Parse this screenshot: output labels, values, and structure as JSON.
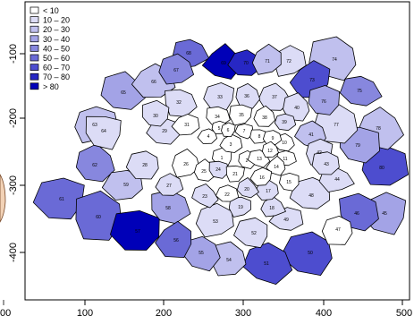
{
  "chart_data": {
    "type": "choropleth",
    "title": "",
    "xlabel": "",
    "ylabel": "",
    "x_ticks": [
      "00",
      "100",
      "200",
      "300",
      "400",
      "500"
    ],
    "y_ticks": [
      "-100",
      "-200",
      "-300",
      "-400"
    ],
    "legend": {
      "placement": "top-left",
      "classes": [
        {
          "label": "< 10",
          "color": "#ffffff"
        },
        {
          "label": "10 – 20",
          "color": "#dcdcf6"
        },
        {
          "label": "20 – 30",
          "color": "#c0c0ee"
        },
        {
          "label": "30 – 40",
          "color": "#a3a3e6"
        },
        {
          "label": "40 – 50",
          "color": "#8787de"
        },
        {
          "label": "50 – 60",
          "color": "#6a6ad6"
        },
        {
          "label": "60 – 70",
          "color": "#4d4dcf"
        },
        {
          "label": "70 – 80",
          "color": "#2727c4"
        },
        {
          "label": "> 80",
          "color": "#0000b8"
        }
      ]
    },
    "regions": [
      {
        "id": "1",
        "cls": 0
      },
      {
        "id": "2",
        "cls": 0
      },
      {
        "id": "3",
        "cls": 0
      },
      {
        "id": "4",
        "cls": 0
      },
      {
        "id": "5",
        "cls": 0
      },
      {
        "id": "6",
        "cls": 0
      },
      {
        "id": "7",
        "cls": 0
      },
      {
        "id": "8",
        "cls": 0
      },
      {
        "id": "9",
        "cls": 0
      },
      {
        "id": "10",
        "cls": 0
      },
      {
        "id": "11",
        "cls": 0
      },
      {
        "id": "12",
        "cls": 0
      },
      {
        "id": "13",
        "cls": 0
      },
      {
        "id": "14",
        "cls": 0
      },
      {
        "id": "15",
        "cls": 0
      },
      {
        "id": "16",
        "cls": 0
      },
      {
        "id": "17",
        "cls": 1
      },
      {
        "id": "18",
        "cls": 1
      },
      {
        "id": "19",
        "cls": 1
      },
      {
        "id": "20",
        "cls": 1
      },
      {
        "id": "21",
        "cls": 0
      },
      {
        "id": "22",
        "cls": 0
      },
      {
        "id": "23",
        "cls": 1
      },
      {
        "id": "24",
        "cls": 1
      },
      {
        "id": "25",
        "cls": 0
      },
      {
        "id": "26",
        "cls": 0
      },
      {
        "id": "27",
        "cls": 1
      },
      {
        "id": "28",
        "cls": 1
      },
      {
        "id": "29",
        "cls": 1
      },
      {
        "id": "30",
        "cls": 1
      },
      {
        "id": "31",
        "cls": 0
      },
      {
        "id": "32",
        "cls": 1
      },
      {
        "id": "33",
        "cls": 1
      },
      {
        "id": "34",
        "cls": 0
      },
      {
        "id": "35",
        "cls": 0
      },
      {
        "id": "36",
        "cls": 1
      },
      {
        "id": "37",
        "cls": 1
      },
      {
        "id": "38",
        "cls": 0
      },
      {
        "id": "39",
        "cls": 1
      },
      {
        "id": "40",
        "cls": 1
      },
      {
        "id": "41",
        "cls": 2
      },
      {
        "id": "42",
        "cls": 1
      },
      {
        "id": "43",
        "cls": 1
      },
      {
        "id": "44",
        "cls": 1
      },
      {
        "id": "45",
        "cls": 3
      },
      {
        "id": "46",
        "cls": 5
      },
      {
        "id": "47",
        "cls": 0
      },
      {
        "id": "48",
        "cls": 1
      },
      {
        "id": "49",
        "cls": 1
      },
      {
        "id": "50",
        "cls": 6
      },
      {
        "id": "51",
        "cls": 6
      },
      {
        "id": "52",
        "cls": 1
      },
      {
        "id": "53",
        "cls": 1
      },
      {
        "id": "54",
        "cls": 2
      },
      {
        "id": "55",
        "cls": 3
      },
      {
        "id": "56",
        "cls": 5
      },
      {
        "id": "57",
        "cls": 8
      },
      {
        "id": "58",
        "cls": 3
      },
      {
        "id": "59",
        "cls": 2
      },
      {
        "id": "60",
        "cls": 5
      },
      {
        "id": "61",
        "cls": 5
      },
      {
        "id": "62",
        "cls": 4
      },
      {
        "id": "63",
        "cls": 2
      },
      {
        "id": "64",
        "cls": 1
      },
      {
        "id": "65",
        "cls": 3
      },
      {
        "id": "66",
        "cls": 2
      },
      {
        "id": "67",
        "cls": 4
      },
      {
        "id": "68",
        "cls": 5
      },
      {
        "id": "69",
        "cls": 8
      },
      {
        "id": "70",
        "cls": 7
      },
      {
        "id": "71",
        "cls": 2
      },
      {
        "id": "72",
        "cls": 1
      },
      {
        "id": "73",
        "cls": 6
      },
      {
        "id": "74",
        "cls": 2
      },
      {
        "id": "75",
        "cls": 4
      },
      {
        "id": "76",
        "cls": 3
      },
      {
        "id": "77",
        "cls": 1
      },
      {
        "id": "78",
        "cls": 2
      },
      {
        "id": "79",
        "cls": 3
      },
      {
        "id": "80",
        "cls": 6
      }
    ]
  }
}
